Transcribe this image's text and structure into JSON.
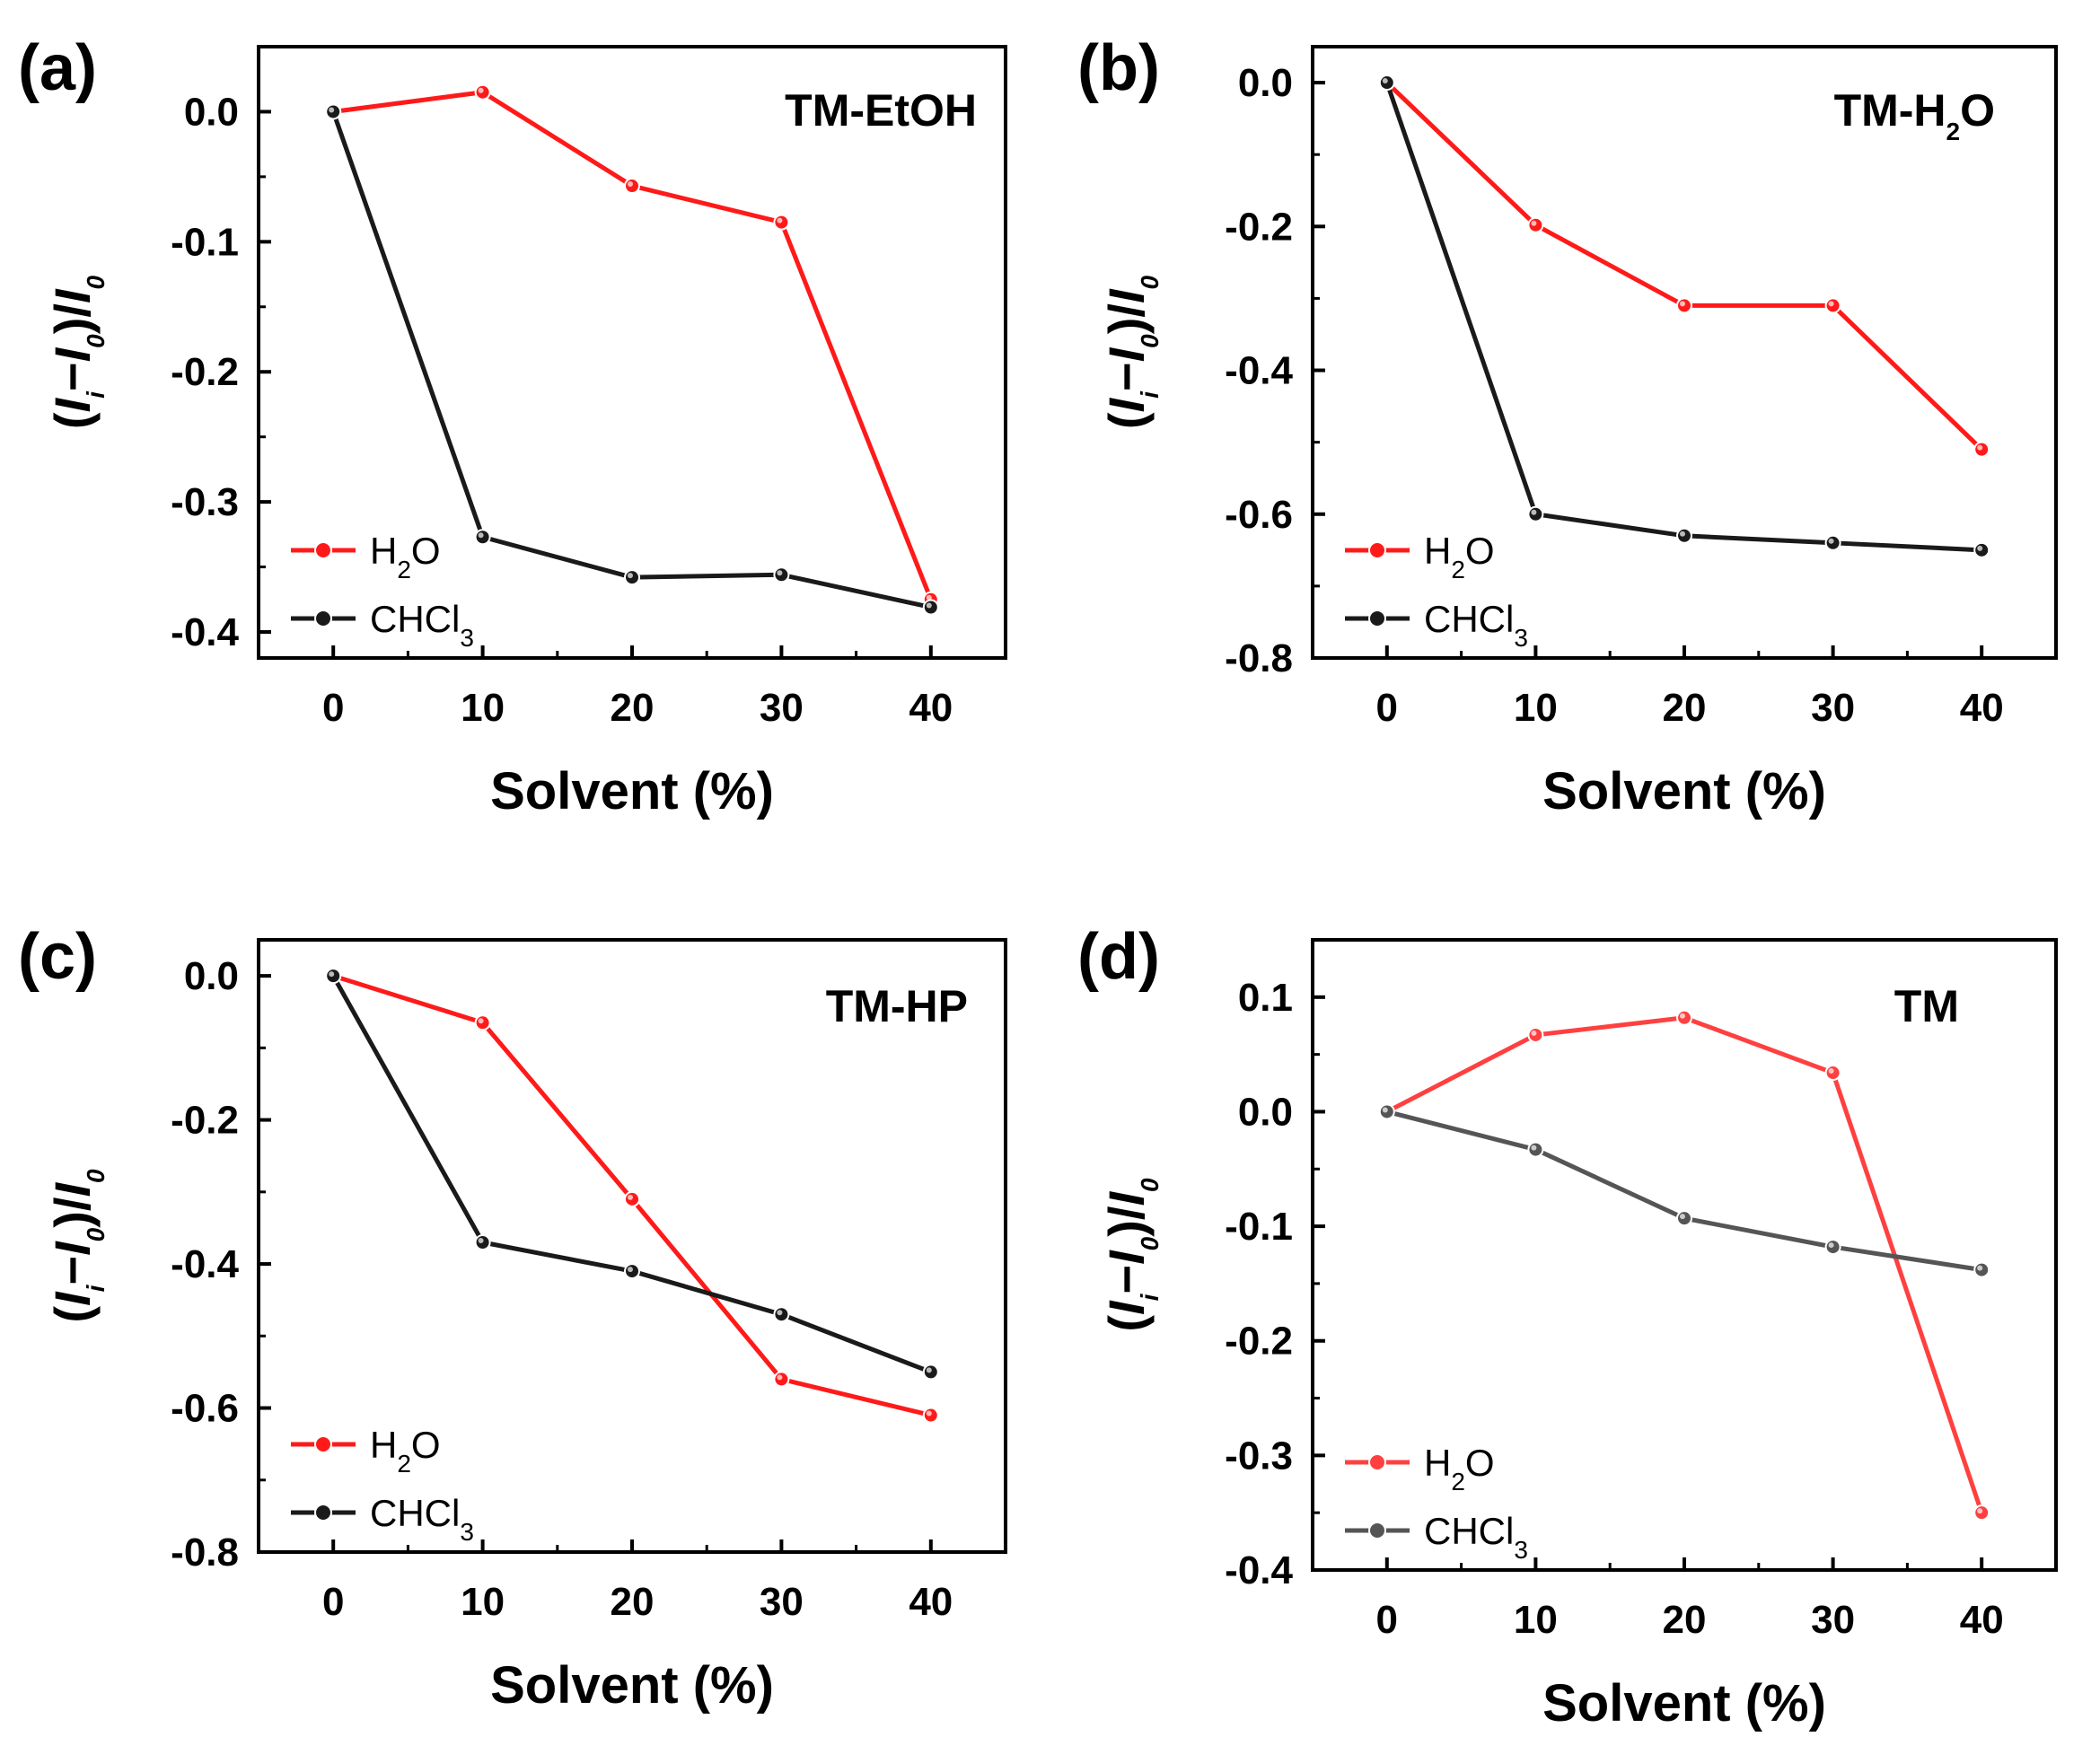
{
  "chart_data": [
    {
      "type": "line",
      "panel_label": "(a)",
      "title": "TM-EtOH",
      "xlabel": "Solvent (%)",
      "ylabel": "(Ii−I0)/I0",
      "x": [
        0,
        10,
        20,
        30,
        40
      ],
      "xticks": [
        "0",
        "10",
        "20",
        "30",
        "40"
      ],
      "xlim": [
        -5,
        45
      ],
      "ylim": [
        -0.42,
        0.05
      ],
      "yticks": [
        "0.0",
        "-0.1",
        "-0.2",
        "-0.3",
        "-0.4"
      ],
      "ytick_values": [
        0.0,
        -0.1,
        -0.2,
        -0.3,
        -0.4
      ],
      "legend_position": "lower-left",
      "series": [
        {
          "name": "H2O",
          "color": "#ff1a1a",
          "values": [
            0.0,
            0.015,
            -0.057,
            -0.085,
            -0.375
          ]
        },
        {
          "name": "CHCl3",
          "color": "#1a1a1a",
          "values": [
            0.0,
            -0.327,
            -0.358,
            -0.356,
            -0.381
          ]
        }
      ]
    },
    {
      "type": "line",
      "panel_label": "(b)",
      "title": "TM-H2O",
      "xlabel": "Solvent (%)",
      "ylabel": "(Ii−I0)/I0",
      "x": [
        0,
        10,
        20,
        30,
        40
      ],
      "xticks": [
        "0",
        "10",
        "20",
        "30",
        "40"
      ],
      "xlim": [
        -5,
        45
      ],
      "ylim": [
        -0.8,
        0.05
      ],
      "yticks": [
        "0.0",
        "-0.2",
        "-0.4",
        "-0.6",
        "-0.8"
      ],
      "ytick_values": [
        0.0,
        -0.2,
        -0.4,
        -0.6,
        -0.8
      ],
      "legend_position": "lower-left",
      "series": [
        {
          "name": "H2O",
          "color": "#ff1a1a",
          "values": [
            0.0,
            -0.198,
            -0.31,
            -0.31,
            -0.51
          ]
        },
        {
          "name": "CHCl3",
          "color": "#1a1a1a",
          "values": [
            0.0,
            -0.6,
            -0.63,
            -0.64,
            -0.65
          ]
        }
      ]
    },
    {
      "type": "line",
      "panel_label": "(c)",
      "title": "TM-HP",
      "xlabel": "Solvent (%)",
      "ylabel": "(Ii−I0)/I0",
      "x": [
        0,
        10,
        20,
        30,
        40
      ],
      "xticks": [
        "0",
        "10",
        "20",
        "30",
        "40"
      ],
      "xlim": [
        -5,
        45
      ],
      "ylim": [
        -0.8,
        0.05
      ],
      "yticks": [
        "0.0",
        "-0.2",
        "-0.4",
        "-0.6",
        "-0.8"
      ],
      "ytick_values": [
        0.0,
        -0.2,
        -0.4,
        -0.6,
        -0.8
      ],
      "legend_position": "lower-left",
      "series": [
        {
          "name": "H2O",
          "color": "#ff1a1a",
          "values": [
            0.0,
            -0.065,
            -0.31,
            -0.56,
            -0.61
          ]
        },
        {
          "name": "CHCl3",
          "color": "#1a1a1a",
          "values": [
            0.0,
            -0.37,
            -0.41,
            -0.47,
            -0.55
          ]
        }
      ]
    },
    {
      "type": "line",
      "panel_label": "(d)",
      "title": "TM",
      "xlabel": "Solvent (%)",
      "ylabel": "(Ii−I0)/I0",
      "x": [
        0,
        10,
        20,
        30,
        40
      ],
      "xticks": [
        "0",
        "10",
        "20",
        "30",
        "40"
      ],
      "xlim": [
        -5,
        45
      ],
      "ylim": [
        -0.4,
        0.15
      ],
      "yticks": [
        "0.1",
        "0.0",
        "-0.1",
        "-0.2",
        "-0.3",
        "-0.4"
      ],
      "ytick_values": [
        0.1,
        0.0,
        -0.1,
        -0.2,
        -0.3,
        -0.4
      ],
      "legend_position": "lower-left",
      "series": [
        {
          "name": "H2O",
          "color": "#ff4040",
          "values": [
            0.0,
            0.067,
            0.082,
            0.034,
            -0.35
          ]
        },
        {
          "name": "CHCl3",
          "color": "#555555",
          "values": [
            0.0,
            -0.033,
            -0.093,
            -0.118,
            -0.138
          ]
        }
      ]
    }
  ]
}
